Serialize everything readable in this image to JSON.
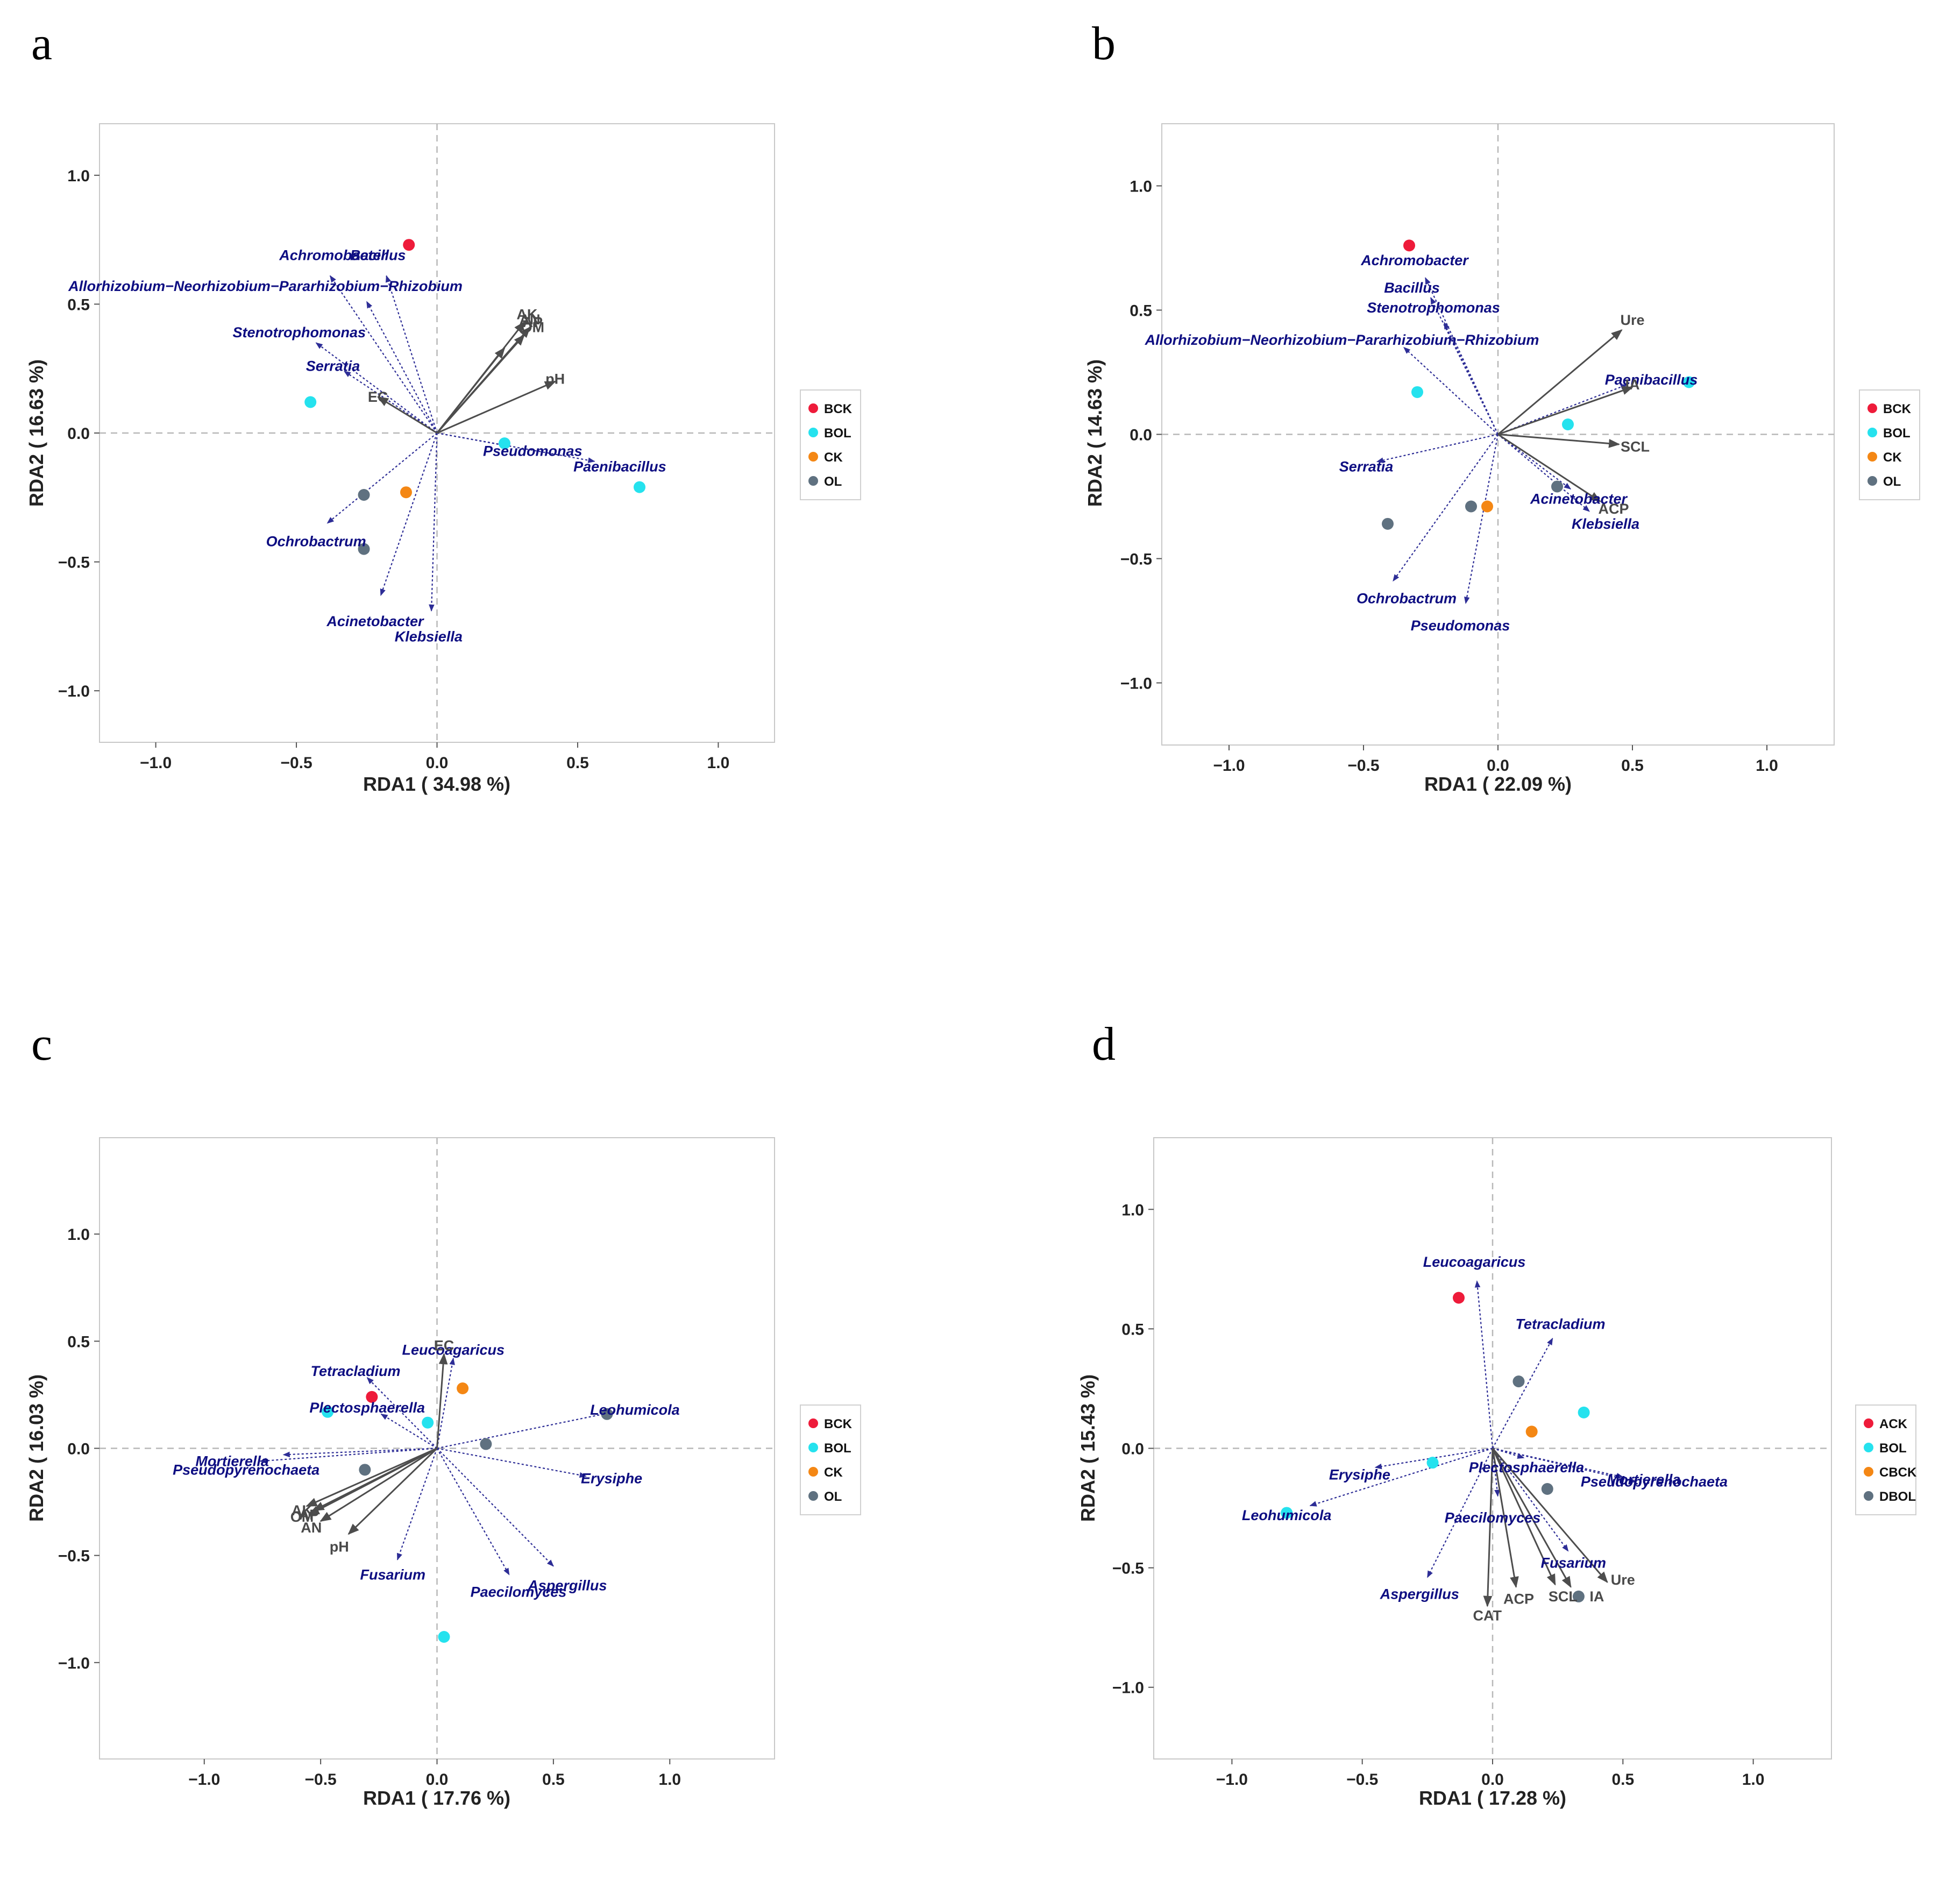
{
  "colors": {
    "series": [
      "#ee1b3a",
      "#25e2ee",
      "#f48714",
      "#5f7180"
    ],
    "env_arrow": "#4d4d4d",
    "species_arrow": "#2d2d96",
    "zero_line": "#b8b8b8",
    "frame": "#c8c8c8"
  },
  "chart_data": [
    {
      "type": "scatter",
      "panel_label": "a",
      "xlabel": "RDA1 ( 34.98 %)",
      "ylabel": "RDA2 ( 16.63 %)",
      "xlim": [
        -1.2,
        1.2
      ],
      "ylim": [
        -1.2,
        1.2
      ],
      "xticks": [
        -1.0,
        -0.5,
        0.0,
        0.5,
        1.0
      ],
      "yticks": [
        -1.0,
        -0.5,
        0.0,
        0.5,
        1.0
      ],
      "xtick_labels": [
        "−1.0",
        "−0.5",
        "0.0",
        "0.5",
        "1.0"
      ],
      "ytick_labels": [
        "−1.0",
        "−0.5",
        "0.0",
        "0.5",
        "1.0"
      ],
      "zero_lines": true,
      "legend": {
        "position": "right",
        "entries": [
          "BCK",
          "BOL",
          "CK",
          "OL"
        ]
      },
      "series": [
        {
          "name": "BCK",
          "points": [
            [
              -0.1,
              0.73
            ]
          ]
        },
        {
          "name": "BOL",
          "points": [
            [
              -0.45,
              0.12
            ],
            [
              0.24,
              -0.04
            ],
            [
              0.72,
              -0.21
            ]
          ]
        },
        {
          "name": "CK",
          "points": [
            [
              -0.11,
              -0.23
            ]
          ]
        },
        {
          "name": "OL",
          "points": [
            [
              -0.26,
              -0.24
            ],
            [
              -0.26,
              -0.45
            ]
          ]
        }
      ],
      "env_vectors": [
        {
          "label": "AK",
          "x": 0.31,
          "y": 0.43,
          "lx": 0.32,
          "ly": 0.46
        },
        {
          "label": "AP",
          "x": 0.33,
          "y": 0.41,
          "lx": 0.34,
          "ly": 0.43
        },
        {
          "label": "OM",
          "x": 0.31,
          "y": 0.38,
          "lx": 0.34,
          "ly": 0.41
        },
        {
          "label": "AN",
          "x": 0.24,
          "y": 0.33,
          "lx": 0.33,
          "ly": 0.44
        },
        {
          "label": "pH",
          "x": 0.42,
          "y": 0.2,
          "lx": 0.42,
          "ly": 0.21
        },
        {
          "label": "EC",
          "x": -0.21,
          "y": 0.14,
          "lx": -0.21,
          "ly": 0.14
        }
      ],
      "species_vectors": [
        {
          "label": "Achromobacter",
          "x": -0.38,
          "y": 0.61,
          "lx": -0.37,
          "ly": 0.69
        },
        {
          "label": "Bacillus",
          "x": -0.18,
          "y": 0.61,
          "lx": -0.21,
          "ly": 0.69
        },
        {
          "label": "Allorhizobium−Neorhizobium−Pararhizobium−Rhizobium",
          "x": -0.25,
          "y": 0.51,
          "lx": -0.61,
          "ly": 0.57
        },
        {
          "label": "Stenotrophomonas",
          "x": -0.43,
          "y": 0.35,
          "lx": -0.49,
          "ly": 0.39
        },
        {
          "label": "Serratia",
          "x": -0.33,
          "y": 0.24,
          "lx": -0.37,
          "ly": 0.26
        },
        {
          "label": "Pseudomonas",
          "x": 0.25,
          "y": -0.05,
          "lx": 0.34,
          "ly": -0.07
        },
        {
          "label": "Paenibacillus",
          "x": 0.56,
          "y": -0.11,
          "lx": 0.65,
          "ly": -0.13
        },
        {
          "label": "Ochrobactrum",
          "x": -0.39,
          "y": -0.35,
          "lx": -0.43,
          "ly": -0.42
        },
        {
          "label": "Acinetobacter",
          "x": -0.2,
          "y": -0.63,
          "lx": -0.22,
          "ly": -0.73
        },
        {
          "label": "Klebsiella",
          "x": -0.02,
          "y": -0.69,
          "lx": -0.03,
          "ly": -0.79
        }
      ]
    },
    {
      "type": "scatter",
      "panel_label": "b",
      "xlabel": "RDA1 ( 22.09 %)",
      "ylabel": "RDA2 ( 14.63 %)",
      "xlim": [
        -1.25,
        1.25
      ],
      "ylim": [
        -1.25,
        1.25
      ],
      "xticks": [
        -1.0,
        -0.5,
        0.0,
        0.5,
        1.0
      ],
      "yticks": [
        -1.0,
        -0.5,
        0.0,
        0.5,
        1.0
      ],
      "xtick_labels": [
        "−1.0",
        "−0.5",
        "0.0",
        "0.5",
        "1.0"
      ],
      "ytick_labels": [
        "−1.0",
        "−0.5",
        "0.0",
        "0.5",
        "1.0"
      ],
      "zero_lines": true,
      "legend": {
        "position": "right",
        "entries": [
          "BCK",
          "BOL",
          "CK",
          "OL"
        ]
      },
      "series": [
        {
          "name": "BCK",
          "points": [
            [
              -0.33,
              0.76
            ]
          ]
        },
        {
          "name": "BOL",
          "points": [
            [
              -0.3,
              0.17
            ],
            [
              0.26,
              0.04
            ],
            [
              0.71,
              0.21
            ]
          ]
        },
        {
          "name": "CK",
          "points": [
            [
              -0.04,
              -0.29
            ]
          ]
        },
        {
          "name": "OL",
          "points": [
            [
              -0.41,
              -0.36
            ],
            [
              -0.1,
              -0.29
            ],
            [
              0.22,
              -0.21
            ]
          ]
        }
      ],
      "env_vectors": [
        {
          "label": "Ure",
          "x": 0.46,
          "y": 0.42,
          "lx": 0.5,
          "ly": 0.46
        },
        {
          "label": "IA",
          "x": 0.5,
          "y": 0.19,
          "lx": 0.5,
          "ly": 0.2
        },
        {
          "label": "SCL",
          "x": 0.45,
          "y": -0.04,
          "lx": 0.51,
          "ly": -0.05
        },
        {
          "label": "ACP",
          "x": 0.38,
          "y": -0.27,
          "lx": 0.43,
          "ly": -0.3
        }
      ],
      "species_vectors": [
        {
          "label": "Achromobacter",
          "x": -0.27,
          "y": 0.63,
          "lx": -0.31,
          "ly": 0.7
        },
        {
          "label": "Bacillus",
          "x": -0.25,
          "y": 0.55,
          "lx": -0.32,
          "ly": 0.59
        },
        {
          "label": "Stenotrophomonas",
          "x": -0.2,
          "y": 0.45,
          "lx": -0.24,
          "ly": 0.51
        },
        {
          "label": "Allorhizobium−Neorhizobium−Pararhizobium−Rhizobium",
          "x": -0.35,
          "y": 0.35,
          "lx": -0.58,
          "ly": 0.38
        },
        {
          "label": "Paenibacillus",
          "x": 0.48,
          "y": 0.2,
          "lx": 0.57,
          "ly": 0.22
        },
        {
          "label": "Serratia",
          "x": -0.45,
          "y": -0.11,
          "lx": -0.49,
          "ly": -0.13
        },
        {
          "label": "Acinetobacter",
          "x": 0.27,
          "y": -0.22,
          "lx": 0.3,
          "ly": -0.26
        },
        {
          "label": "Klebsiella",
          "x": 0.34,
          "y": -0.31,
          "lx": 0.4,
          "ly": -0.36
        },
        {
          "label": "Ochrobactrum",
          "x": -0.39,
          "y": -0.59,
          "lx": -0.34,
          "ly": -0.66
        },
        {
          "label": "Pseudomonas",
          "x": -0.12,
          "y": -0.68,
          "lx": -0.14,
          "ly": -0.77
        }
      ]
    },
    {
      "type": "scatter",
      "panel_label": "c",
      "xlabel": "RDA1 ( 17.76 %)",
      "ylabel": "RDA2 ( 16.03 %)",
      "xlim": [
        -1.45,
        1.45
      ],
      "ylim": [
        -1.45,
        1.45
      ],
      "xticks": [
        -1.0,
        -0.5,
        0.0,
        0.5,
        1.0
      ],
      "yticks": [
        -1.0,
        -0.5,
        0.0,
        0.5,
        1.0
      ],
      "xtick_labels": [
        "−1.0",
        "−0.5",
        "0.0",
        "0.5",
        "1.0"
      ],
      "ytick_labels": [
        "−1.0",
        "−0.5",
        "0.0",
        "0.5",
        "1.0"
      ],
      "zero_lines": true,
      "legend": {
        "position": "right",
        "entries": [
          "BCK",
          "BOL",
          "CK",
          "OL"
        ]
      },
      "series": [
        {
          "name": "BCK",
          "points": [
            [
              -0.28,
              0.24
            ]
          ]
        },
        {
          "name": "BOL",
          "points": [
            [
              -0.47,
              0.17
            ],
            [
              -0.04,
              0.12
            ],
            [
              0.03,
              -0.88
            ]
          ]
        },
        {
          "name": "CK",
          "points": [
            [
              0.11,
              0.28
            ]
          ]
        },
        {
          "name": "OL",
          "points": [
            [
              -0.31,
              -0.1
            ],
            [
              0.21,
              0.02
            ],
            [
              0.73,
              0.16
            ]
          ]
        }
      ],
      "env_vectors": [
        {
          "label": "EC",
          "x": 0.03,
          "y": 0.44,
          "lx": 0.03,
          "ly": 0.48
        },
        {
          "label": "AK",
          "x": -0.56,
          "y": -0.27,
          "lx": -0.58,
          "ly": -0.29
        },
        {
          "label": "AP",
          "x": -0.53,
          "y": -0.29,
          "lx": -0.55,
          "ly": -0.31
        },
        {
          "label": "OM",
          "x": -0.55,
          "y": -0.31,
          "lx": -0.58,
          "ly": -0.32
        },
        {
          "label": "AN",
          "x": -0.5,
          "y": -0.34,
          "lx": -0.54,
          "ly": -0.37
        },
        {
          "label": "pH",
          "x": -0.38,
          "y": -0.4,
          "lx": -0.42,
          "ly": -0.46
        }
      ],
      "species_vectors": [
        {
          "label": "Leucoagaricus",
          "x": 0.07,
          "y": 0.42,
          "lx": 0.07,
          "ly": 0.46
        },
        {
          "label": "Tetracladium",
          "x": -0.3,
          "y": 0.33,
          "lx": -0.35,
          "ly": 0.36
        },
        {
          "label": "Plectosphaerella",
          "x": -0.24,
          "y": 0.16,
          "lx": -0.3,
          "ly": 0.19
        },
        {
          "label": "Leohumicola",
          "x": 0.76,
          "y": 0.17,
          "lx": 0.85,
          "ly": 0.18
        },
        {
          "label": "Mortierella",
          "x": -0.76,
          "y": -0.06,
          "lx": -0.88,
          "ly": -0.06
        },
        {
          "label": "Pseudopyrenochaeta",
          "x": -0.66,
          "y": -0.03,
          "lx": -0.82,
          "ly": -0.1
        },
        {
          "label": "Erysiphe",
          "x": 0.64,
          "y": -0.13,
          "lx": 0.75,
          "ly": -0.14
        },
        {
          "label": "Fusarium",
          "x": -0.17,
          "y": -0.52,
          "lx": -0.19,
          "ly": -0.59
        },
        {
          "label": "Aspergillus",
          "x": 0.5,
          "y": -0.55,
          "lx": 0.56,
          "ly": -0.64
        },
        {
          "label": "Paecilomyces",
          "x": 0.31,
          "y": -0.59,
          "lx": 0.35,
          "ly": -0.67
        }
      ]
    },
    {
      "type": "scatter",
      "panel_label": "d",
      "xlabel": "RDA1 ( 17.28 %)",
      "ylabel": "RDA2 ( 15.43 %)",
      "xlim": [
        -1.3,
        1.3
      ],
      "ylim": [
        -1.3,
        1.3
      ],
      "xticks": [
        -1.0,
        -0.5,
        0.0,
        0.5,
        1.0
      ],
      "yticks": [
        -1.0,
        -0.5,
        0.0,
        0.5,
        1.0
      ],
      "xtick_labels": [
        "−1.0",
        "−0.5",
        "0.0",
        "0.5",
        "1.0"
      ],
      "ytick_labels": [
        "−1.0",
        "−0.5",
        "0.0",
        "0.5",
        "1.0"
      ],
      "zero_lines": true,
      "legend": {
        "position": "right",
        "entries": [
          "ACK",
          "BOL",
          "CBCK",
          "DBOL"
        ]
      },
      "series": [
        {
          "name": "ACK",
          "points": [
            [
              -0.13,
              0.63
            ]
          ]
        },
        {
          "name": "BOL",
          "points": [
            [
              -0.79,
              -0.27
            ],
            [
              -0.23,
              -0.06
            ],
            [
              0.35,
              0.15
            ]
          ]
        },
        {
          "name": "CBCK",
          "points": [
            [
              0.15,
              0.07
            ]
          ]
        },
        {
          "name": "DBOL",
          "points": [
            [
              0.1,
              0.28
            ],
            [
              0.21,
              -0.17
            ],
            [
              0.33,
              -0.62
            ]
          ]
        }
      ],
      "env_vectors": [
        {
          "label": "CAT",
          "x": -0.02,
          "y": -0.66,
          "lx": -0.02,
          "ly": -0.7
        },
        {
          "label": "ACP",
          "x": 0.09,
          "y": -0.58,
          "lx": 0.1,
          "ly": -0.63
        },
        {
          "label": "SCL",
          "x": 0.24,
          "y": -0.57,
          "lx": 0.27,
          "ly": -0.62
        },
        {
          "label": "IA",
          "x": 0.3,
          "y": -0.58,
          "lx": 0.4,
          "ly": -0.62
        },
        {
          "label": "Ure",
          "x": 0.44,
          "y": -0.56,
          "lx": 0.5,
          "ly": -0.55
        }
      ],
      "species_vectors": [
        {
          "label": "Leucoagaricus",
          "x": -0.06,
          "y": 0.7,
          "lx": -0.07,
          "ly": 0.78
        },
        {
          "label": "Tetracladium",
          "x": 0.23,
          "y": 0.46,
          "lx": 0.26,
          "ly": 0.52
        },
        {
          "label": "Plectosphaerella",
          "x": 0.12,
          "y": -0.04,
          "lx": 0.13,
          "ly": -0.08
        },
        {
          "label": "Erysiphe",
          "x": -0.45,
          "y": -0.08,
          "lx": -0.51,
          "ly": -0.11
        },
        {
          "label": "Leohumicola",
          "x": -0.7,
          "y": -0.24,
          "lx": -0.79,
          "ly": -0.28
        },
        {
          "label": "Pseudopyrenochaeta",
          "x": 0.55,
          "y": -0.14,
          "lx": 0.62,
          "ly": -0.14
        },
        {
          "label": "Mortierella",
          "x": 0.5,
          "y": -0.12,
          "lx": 0.58,
          "ly": -0.13
        },
        {
          "label": "Paecilomyces",
          "x": 0.02,
          "y": -0.2,
          "lx": 0.0,
          "ly": -0.29
        },
        {
          "label": "Fusarium",
          "x": 0.29,
          "y": -0.43,
          "lx": 0.31,
          "ly": -0.48
        },
        {
          "label": "Aspergillus",
          "x": -0.25,
          "y": -0.54,
          "lx": -0.28,
          "ly": -0.61
        }
      ]
    }
  ]
}
